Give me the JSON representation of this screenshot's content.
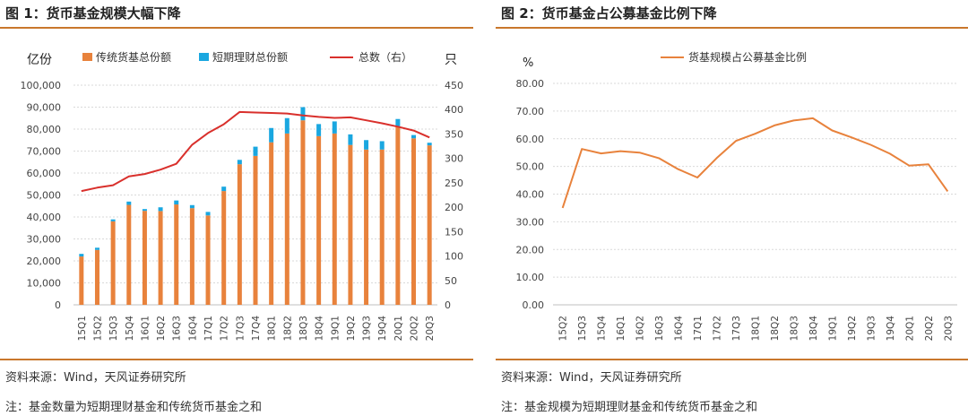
{
  "left": {
    "fig_title": "图 1：货币基金规模大幅下降",
    "source": "资料来源：Wind，天风证券研究所",
    "note": "注：基金数量为短期理财基金和传统货币基金之和"
  },
  "right": {
    "fig_title": "图 2：货币基金占公募基金比例下降",
    "source": "资料来源：Wind，天风证券研究所",
    "note": "注：基金规模为短期理财基金和传统货币基金之和"
  },
  "colors": {
    "orange": "#e8823c",
    "blue": "#1aa7e0",
    "red": "#d9302c",
    "line_orange": "#e8823c",
    "rule": "#c9772c"
  },
  "chart_data": [
    {
      "type": "bar",
      "title": "",
      "y_left_label": "亿份",
      "y_right_label": "只",
      "ylim_left": [
        0,
        100000
      ],
      "ylim_right": [
        0,
        450
      ],
      "y_left_ticks": [
        "0",
        "10,000",
        "20,000",
        "30,000",
        "40,000",
        "50,000",
        "60,000",
        "70,000",
        "80,000",
        "90,000",
        "100,000"
      ],
      "y_right_ticks": [
        "0",
        "50",
        "100",
        "150",
        "200",
        "250",
        "300",
        "350",
        "400",
        "450"
      ],
      "categories": [
        "15Q1",
        "15Q2",
        "15Q3",
        "15Q4",
        "16Q1",
        "16Q2",
        "16Q3",
        "16Q4",
        "17Q1",
        "17Q2",
        "17Q3",
        "17Q4",
        "18Q1",
        "18Q2",
        "18Q3",
        "18Q4",
        "19Q1",
        "19Q2",
        "19Q3",
        "19Q4",
        "20Q1",
        "20Q2",
        "20Q3"
      ],
      "series": [
        {
          "name": "传统货基总份额",
          "kind": "bar-stack",
          "axis": "left",
          "values": [
            22000,
            25000,
            38000,
            45500,
            42800,
            42700,
            45700,
            44000,
            40700,
            51800,
            64000,
            67800,
            74000,
            78000,
            84000,
            76800,
            78000,
            72800,
            70700,
            70700,
            81300,
            75800,
            72600
          ]
        },
        {
          "name": "短期理财总份额",
          "kind": "bar-stack",
          "axis": "left",
          "values": [
            1200,
            1000,
            900,
            1500,
            800,
            1700,
            1800,
            1400,
            1600,
            2000,
            2000,
            4200,
            6500,
            7000,
            6000,
            5500,
            5500,
            4800,
            4300,
            3800,
            3300,
            1500,
            1200
          ]
        },
        {
          "name": "总数（右）",
          "kind": "line",
          "axis": "right",
          "values": [
            233,
            240,
            245,
            263,
            268,
            277,
            289,
            328,
            352,
            370,
            395,
            394,
            393,
            392,
            388,
            385,
            383,
            384,
            378,
            372,
            365,
            357,
            343
          ]
        }
      ]
    },
    {
      "type": "line",
      "title": "",
      "ylabel": "%",
      "ylim": [
        0,
        80
      ],
      "y_ticks": [
        "0.00",
        "10.00",
        "20.00",
        "30.00",
        "40.00",
        "50.00",
        "60.00",
        "70.00",
        "80.00"
      ],
      "categories": [
        "15Q2",
        "15Q3",
        "15Q4",
        "16Q1",
        "16Q2",
        "16Q3",
        "16Q4",
        "17Q1",
        "17Q2",
        "17Q3",
        "18Q1",
        "18Q2",
        "18Q3",
        "18Q4",
        "19Q1",
        "19Q2",
        "19Q3",
        "19Q4",
        "20Q1",
        "20Q2",
        "20Q3"
      ],
      "series": [
        {
          "name": "货基规模占公募基金比例",
          "values": [
            35.0,
            56.3,
            54.7,
            55.5,
            55.0,
            53.0,
            49.0,
            46.0,
            53.0,
            59.2,
            61.8,
            64.8,
            66.6,
            67.4,
            63.0,
            60.5,
            57.8,
            54.6,
            50.3,
            50.8,
            41.0
          ]
        }
      ]
    }
  ]
}
